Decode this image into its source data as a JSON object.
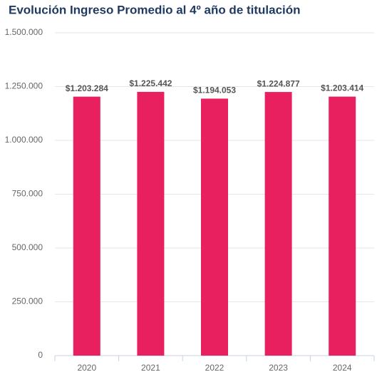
{
  "chart_data": {
    "type": "bar",
    "title": "Evolución Ingreso Promedio al 4º año de titulación",
    "categories": [
      "2020",
      "2021",
      "2022",
      "2023",
      "2024"
    ],
    "values": [
      1203284,
      1225442,
      1194053,
      1224877,
      1203414
    ],
    "value_labels": [
      "$1.203.284",
      "$1.225.442",
      "$1.194.053",
      "$1.224.877",
      "$1.203.414"
    ],
    "color": "#e8205f",
    "ylim": [
      0,
      1500000
    ],
    "yticks": [
      0,
      {
        "value": 250000,
        "label": "250.000"
      },
      {
        "value": 500000,
        "label": "500.000"
      },
      {
        "value": 750000,
        "label": "750.000"
      },
      {
        "value": 1000000,
        "label": "1.000.000"
      },
      {
        "value": 1250000,
        "label": "1.250.000"
      },
      {
        "value": 1500000,
        "label": "1.500.000"
      }
    ],
    "grid": true
  }
}
